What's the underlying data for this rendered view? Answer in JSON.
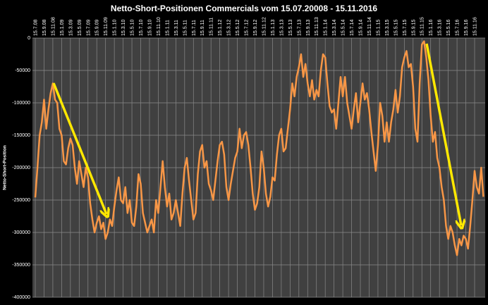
{
  "chart_data": {
    "type": "line",
    "title": "Netto-Short-Positionen Commercials vom 15.07.20008 - 15.11.2016",
    "y_label": "Netto-Short-Position",
    "categories": [
      "15.7.08",
      null,
      null,
      null,
      "15.9.08",
      null,
      null,
      null,
      "15.11.08",
      null,
      null,
      null,
      "15.1.09",
      null,
      null,
      null,
      "15.3.09",
      null,
      null,
      null,
      "15.5.09",
      null,
      null,
      null,
      "15.7.09",
      null,
      null,
      null,
      "15.9.09",
      null,
      null,
      null,
      "15.11.09",
      null,
      null,
      null,
      "15.1.10",
      null,
      null,
      null,
      "15.3.10",
      null,
      null,
      null,
      "15.5.10",
      null,
      null,
      null,
      "15.7.10",
      null,
      null,
      null,
      "15.9.10",
      null,
      null,
      null,
      "15.11.10",
      null,
      null,
      null,
      "15.1.11",
      null,
      null,
      null,
      "15.3.11",
      null,
      null,
      null,
      "15.5.11",
      null,
      null,
      null,
      "15.7.11",
      null,
      null,
      null,
      "15.9.11",
      null,
      null,
      null,
      "15.11.11",
      null,
      null,
      null,
      "15.1.12",
      null,
      null,
      null,
      "15.3.12",
      null,
      null,
      null,
      "15.5.12",
      null,
      null,
      null,
      "15.7.12",
      null,
      null,
      null,
      "15.9.12",
      null,
      null,
      null,
      "15.11.12",
      null,
      null,
      null,
      "15.1.13",
      null,
      null,
      null,
      "15.3.13",
      null,
      null,
      null,
      "15.5.13",
      null,
      null,
      null,
      "15.7.13",
      null,
      null,
      null,
      "15.9.13",
      null,
      null,
      null,
      "15.11.13",
      null,
      null,
      null,
      "15.1.14",
      null,
      null,
      null,
      "15.3.14",
      null,
      null,
      null,
      "15.5.14",
      null,
      null,
      null,
      "15.7.14",
      null,
      null,
      null,
      "15.9.14",
      null,
      null,
      null,
      "15.11.14",
      null,
      null,
      null,
      "15.1.15",
      null,
      null,
      null,
      "15.3.15",
      null,
      null,
      null,
      "15.5.15",
      null,
      null,
      null,
      "15.7.15",
      null,
      null,
      null,
      "15.9.15",
      null,
      null,
      null,
      "15.11.15",
      null,
      null,
      null,
      "15.1.16",
      null,
      null,
      null,
      "15.3.16",
      null,
      null,
      null,
      "15.5.16",
      null,
      null,
      null,
      "15.7.16",
      null,
      null,
      null,
      "15.9.16",
      null,
      null,
      null,
      "15.11.16",
      null,
      null,
      null,
      null
    ],
    "series": [
      {
        "name": "Netto-Short-Position",
        "color": "#f79646",
        "values": [
          -246000,
          -200000,
          -150000,
          -130000,
          -95000,
          -140000,
          -110000,
          -85000,
          -70000,
          -95000,
          -100000,
          -140000,
          -150000,
          -190000,
          -195000,
          -170000,
          -155000,
          -165000,
          -200000,
          -225000,
          -190000,
          -210000,
          -230000,
          -200000,
          -215000,
          -255000,
          -280000,
          -300000,
          -285000,
          -275000,
          -295000,
          -285000,
          -310000,
          -300000,
          -280000,
          -290000,
          -260000,
          -235000,
          -215000,
          -250000,
          -255000,
          -230000,
          -270000,
          -250000,
          -285000,
          -290000,
          -260000,
          -210000,
          -225000,
          -270000,
          -285000,
          -300000,
          -290000,
          -280000,
          -300000,
          -250000,
          -270000,
          -230000,
          -190000,
          -230000,
          -260000,
          -240000,
          -280000,
          -270000,
          -250000,
          -270000,
          -290000,
          -240000,
          -200000,
          -185000,
          -220000,
          -250000,
          -280000,
          -270000,
          -210000,
          -175000,
          -165000,
          -200000,
          -190000,
          -225000,
          -235000,
          -250000,
          -220000,
          -190000,
          -165000,
          -160000,
          -180000,
          -230000,
          -250000,
          -225000,
          -205000,
          -185000,
          -175000,
          -140000,
          -170000,
          -150000,
          -145000,
          -165000,
          -200000,
          -240000,
          -265000,
          -255000,
          -230000,
          -175000,
          -200000,
          -240000,
          -260000,
          -245000,
          -215000,
          -220000,
          -180000,
          -150000,
          -140000,
          -175000,
          -170000,
          -140000,
          -110000,
          -70000,
          -90000,
          -60000,
          -45000,
          -25000,
          -60000,
          -40000,
          -70000,
          -90000,
          -65000,
          -95000,
          -80000,
          -90000,
          -50000,
          -25000,
          -30000,
          -70000,
          -105000,
          -115000,
          -110000,
          -140000,
          -100000,
          -60000,
          -90000,
          -60000,
          -100000,
          -120000,
          -140000,
          -110000,
          -85000,
          -130000,
          -100000,
          -70000,
          -95000,
          -85000,
          -110000,
          -145000,
          -175000,
          -205000,
          -165000,
          -100000,
          -120000,
          -160000,
          -130000,
          -160000,
          -130000,
          -110000,
          -80000,
          -115000,
          -90000,
          -45000,
          -30000,
          -20000,
          -45000,
          -40000,
          -75000,
          -140000,
          -160000,
          -70000,
          -10000,
          -5000,
          -30000,
          -65000,
          -120000,
          -160000,
          -145000,
          -185000,
          -200000,
          -230000,
          -250000,
          -290000,
          -310000,
          -290000,
          -300000,
          -320000,
          -335000,
          -310000,
          -320000,
          -305000,
          -310000,
          -325000,
          -290000,
          -250000,
          -205000,
          -230000,
          -240000,
          -200000,
          -245000
        ]
      }
    ],
    "ylim": [
      -400000,
      0
    ],
    "yticks": [
      0,
      -50000,
      -100000,
      -150000,
      -200000,
      -250000,
      -300000,
      -350000,
      -400000
    ],
    "grid": true
  }
}
